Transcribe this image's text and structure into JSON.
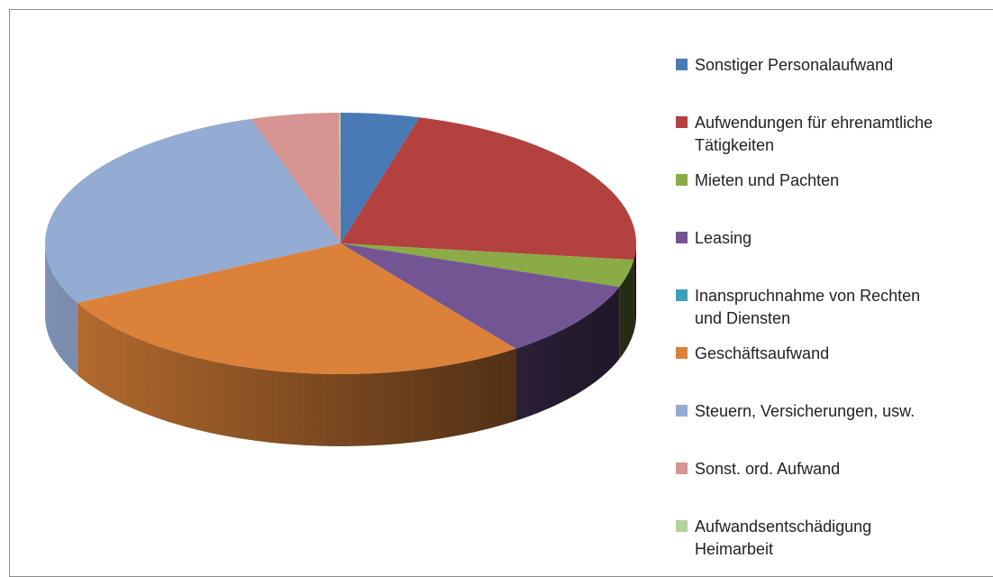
{
  "chart_data": {
    "type": "pie",
    "categories": [
      "Sonstiger Personalaufwand",
      "Aufwendungen für ehrenamtliche Tätigkeiten",
      "Mieten und Pachten",
      "Leasing",
      "Inanspruchnahme von Rechten und Diensten",
      "Geschäftsaufwand",
      "Steuern, Versicherungen, usw.",
      "Sonst. ord. Aufwand",
      "Aufwandsentschädigung Heimarbeit"
    ],
    "values": [
      4.3,
      22.7,
      3.4,
      9.5,
      0,
      27.6,
      27.6,
      4.8,
      0.1
    ],
    "colors": [
      "#4a7ab5",
      "#b2413f",
      "#8bab47",
      "#735594",
      "#3ea0b8",
      "#db8139",
      "#94abd3",
      "#d69592",
      "#b5d19c"
    ],
    "legend": "right"
  }
}
